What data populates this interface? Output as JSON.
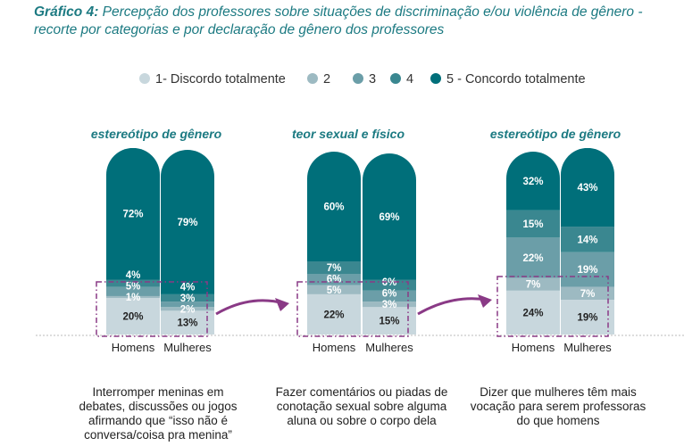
{
  "title": {
    "prefix": "Gráfico 4:",
    "text": " Percepção dos professores sobre situações de discriminação e/ou violência de gênero - recorte por categorias e por declaração de gênero dos professores"
  },
  "colors": [
    "#c8d7dd",
    "#9dbac2",
    "#6b9ea8",
    "#3a8790",
    "#006f7a"
  ],
  "accent": "#8a3a86",
  "chart_data": {
    "type": "bar",
    "stacked": true,
    "legend": {
      "position": "top",
      "entries": [
        "1- Discordo totalmente",
        "2",
        "3",
        "4",
        "5 - Concordo totalmente"
      ]
    },
    "groups": [
      {
        "title": "estereótipo de gênero",
        "description": "Interromper meninas em debates, discussões ou jogos afirmando que “isso não é conversa/coisa pra menina”",
        "categories": [
          "Homens",
          "Mulheres"
        ],
        "values": [
          [
            20,
            1,
            5,
            4,
            72
          ],
          [
            13,
            2,
            3,
            4,
            79
          ]
        ]
      },
      {
        "title": "teor sexual e físico",
        "description": "Fazer comentários ou piadas de conotação sexual sobre alguma aluna ou sobre o corpo dela",
        "categories": [
          "Homens",
          "Mulheres"
        ],
        "values": [
          [
            22,
            5,
            6,
            7,
            60
          ],
          [
            15,
            3,
            6,
            6,
            69
          ]
        ]
      },
      {
        "title": "estereótipo de gênero",
        "description": "Dizer que mulheres têm mais vocação para serem professoras do que homens",
        "categories": [
          "Homens",
          "Mulheres"
        ],
        "values": [
          [
            24,
            7,
            22,
            15,
            32
          ],
          [
            19,
            7,
            19,
            14,
            43
          ]
        ]
      }
    ]
  }
}
